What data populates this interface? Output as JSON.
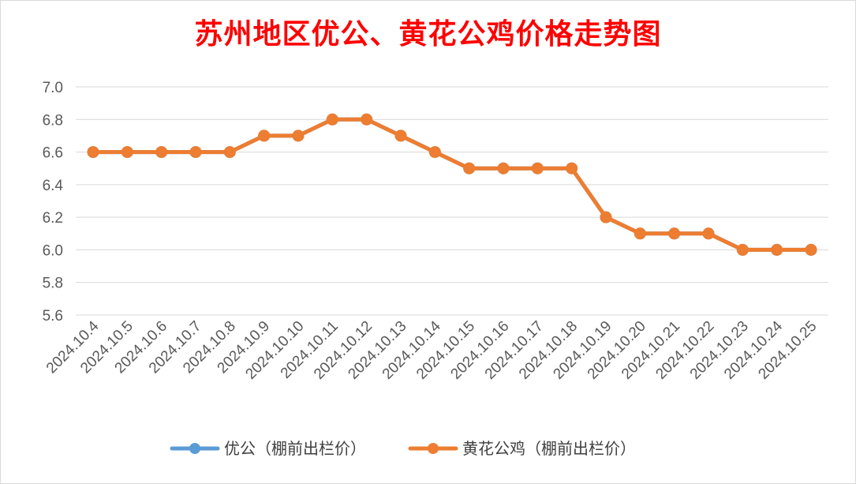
{
  "chart_data": {
    "type": "line",
    "title": "苏州地区优公、黄花公鸡价格走势图",
    "categories": [
      "2024.10.4",
      "2024.10.5",
      "2024.10.6",
      "2024.10.7",
      "2024.10.8",
      "2024.10.9",
      "2024.10.10",
      "2024.10.11",
      "2024.10.12",
      "2024.10.13",
      "2024.10.14",
      "2024.10.15",
      "2024.10.16",
      "2024.10.17",
      "2024.10.18",
      "2024.10.19",
      "2024.10.20",
      "2024.10.21",
      "2024.10.22",
      "2024.10.23",
      "2024.10.24",
      "2024.10.25"
    ],
    "series": [
      {
        "name": "优公（棚前出栏价）",
        "color": "#5b9bd5",
        "values": [
          6.6,
          6.6,
          6.6,
          6.6,
          6.6,
          6.7,
          6.7,
          6.8,
          6.8,
          6.7,
          6.6,
          6.5,
          6.5,
          6.5,
          6.5,
          6.2,
          6.1,
          6.1,
          6.1,
          6.0,
          6.0,
          6.0
        ]
      },
      {
        "name": "黄花公鸡（棚前出栏价）",
        "color": "#ed7d31",
        "values": [
          6.6,
          6.6,
          6.6,
          6.6,
          6.6,
          6.7,
          6.7,
          6.8,
          6.8,
          6.7,
          6.6,
          6.5,
          6.5,
          6.5,
          6.5,
          6.2,
          6.1,
          6.1,
          6.1,
          6.0,
          6.0,
          6.0
        ]
      }
    ],
    "yticks": [
      "7.0",
      "6.8",
      "6.6",
      "6.4",
      "6.2",
      "6.0",
      "5.8",
      "5.6"
    ],
    "ylim": [
      5.6,
      7.0
    ],
    "grid": true,
    "legend_position": "bottom"
  }
}
